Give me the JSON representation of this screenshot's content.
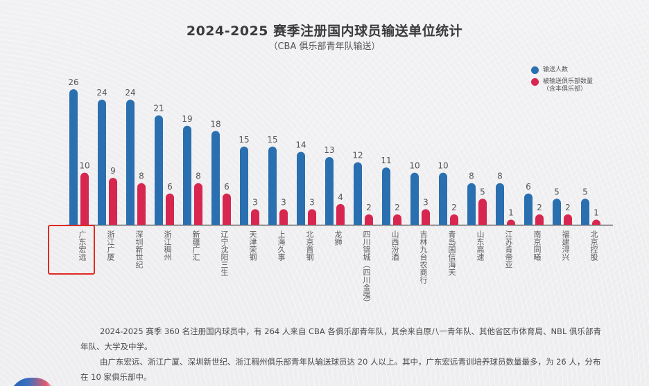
{
  "chart_data": {
    "type": "bar",
    "title": "2024-2025 赛季注册国内球员输送单位统计",
    "subtitle": "（CBA 俱乐部青年队输送）",
    "xlabel": "",
    "ylabel": "",
    "ylim": [
      0,
      26
    ],
    "grid": false,
    "legend_position": "top-right",
    "categories": [
      "广东宏远",
      "浙江广厦",
      "深圳新世纪",
      "浙江稠州",
      "新疆广汇",
      "辽宁沈阳三生",
      "天津荣钢",
      "上海久事",
      "北京首钢",
      "龙狮",
      "四川锦城（四川金强）",
      "山西汾酒",
      "吉林九台农商行",
      "青岛国信海天",
      "山东高速",
      "江苏肯帝亚",
      "南京同曦",
      "福建浔兴",
      "北京控股"
    ],
    "series": [
      {
        "name": "输送人数",
        "color": "#2a6fb0",
        "values": [
          26,
          24,
          24,
          21,
          19,
          18,
          15,
          15,
          14,
          13,
          12,
          11,
          10,
          10,
          8,
          8,
          6,
          5,
          5
        ]
      },
      {
        "name": "被输送俱乐部数量（含本俱乐部）",
        "color": "#d7264f",
        "values": [
          10,
          9,
          8,
          6,
          8,
          6,
          3,
          3,
          3,
          4,
          2,
          2,
          3,
          2,
          5,
          1,
          2,
          2,
          1
        ]
      }
    ],
    "highlighted_category": "广东宏远"
  },
  "legend": {
    "items": [
      {
        "label": "输送人数",
        "color": "#2a6fb0"
      },
      {
        "label": "被输送俱乐部数量",
        "sub": "（含本俱乐部）",
        "color": "#d7264f"
      }
    ]
  },
  "paragraphs": [
    "2024-2025 赛季 360 名注册国内球员中，有 264 人来自 CBA 各俱乐部青年队，其余来自原八一青年队、其他省区市体育局、NBL 俱乐部青年队、大学及中学。",
    "由广东宏远、浙江广厦、深圳新世纪、浙江稠州俱乐部青年队输送球员达 20 人以上。其中，广东宏远青训培养球员数量最多，为 26 人，分布在 10 家俱乐部中。"
  ]
}
